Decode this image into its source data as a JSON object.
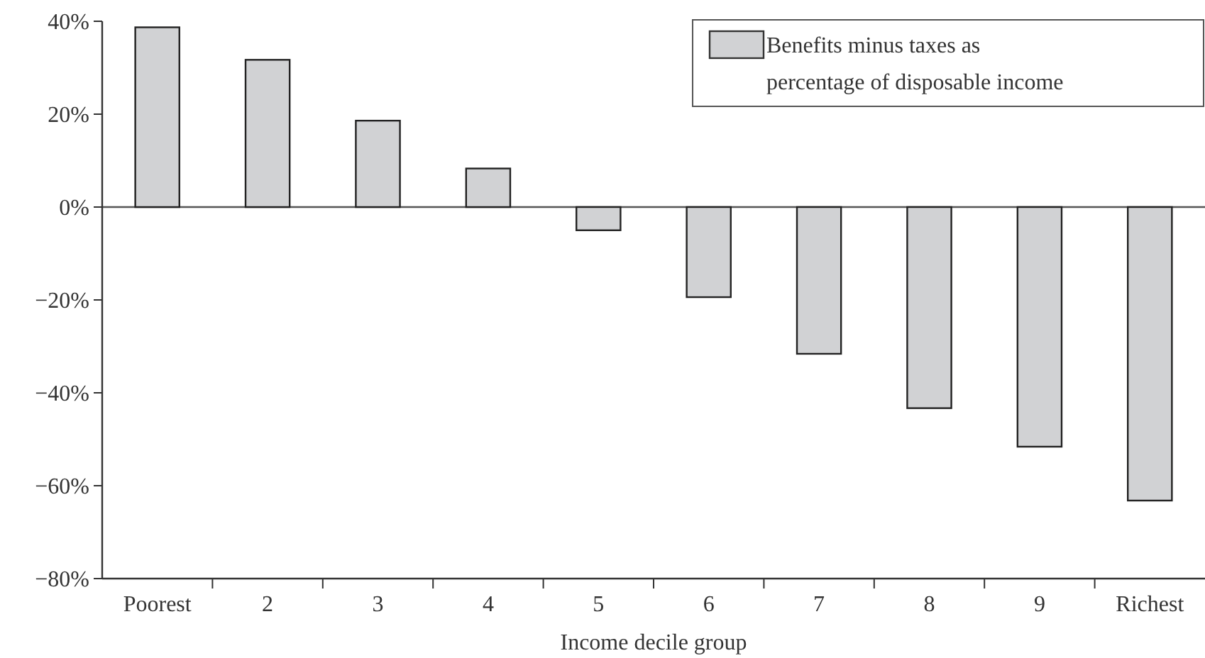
{
  "chart_data": {
    "type": "bar",
    "xlabel": "Income decile group",
    "categories": [
      "Poorest",
      "2",
      "3",
      "4",
      "5",
      "6",
      "7",
      "8",
      "9",
      "Richest"
    ],
    "series": [
      {
        "name": "Benefits minus taxes as percentage of disposable income",
        "color": "#d1d2d4",
        "values": [
          38.7,
          31.7,
          18.6,
          8.3,
          -5.0,
          -19.4,
          -31.6,
          -43.3,
          -51.6,
          -63.2
        ]
      }
    ],
    "ylim": [
      -80,
      40
    ],
    "yticks": [
      {
        "value": -80,
        "label": "−80%"
      },
      {
        "value": -60,
        "label": "−60%"
      },
      {
        "value": -40,
        "label": "−40%"
      },
      {
        "value": -20,
        "label": "−20%"
      },
      {
        "value": 0,
        "label": "0%"
      },
      {
        "value": 20,
        "label": "20%"
      },
      {
        "value": 40,
        "label": "40%"
      }
    ],
    "ref_lines": [
      {
        "axis": "y",
        "value": 0,
        "color": "#555555"
      }
    ],
    "grid": false,
    "legend": "top right"
  }
}
